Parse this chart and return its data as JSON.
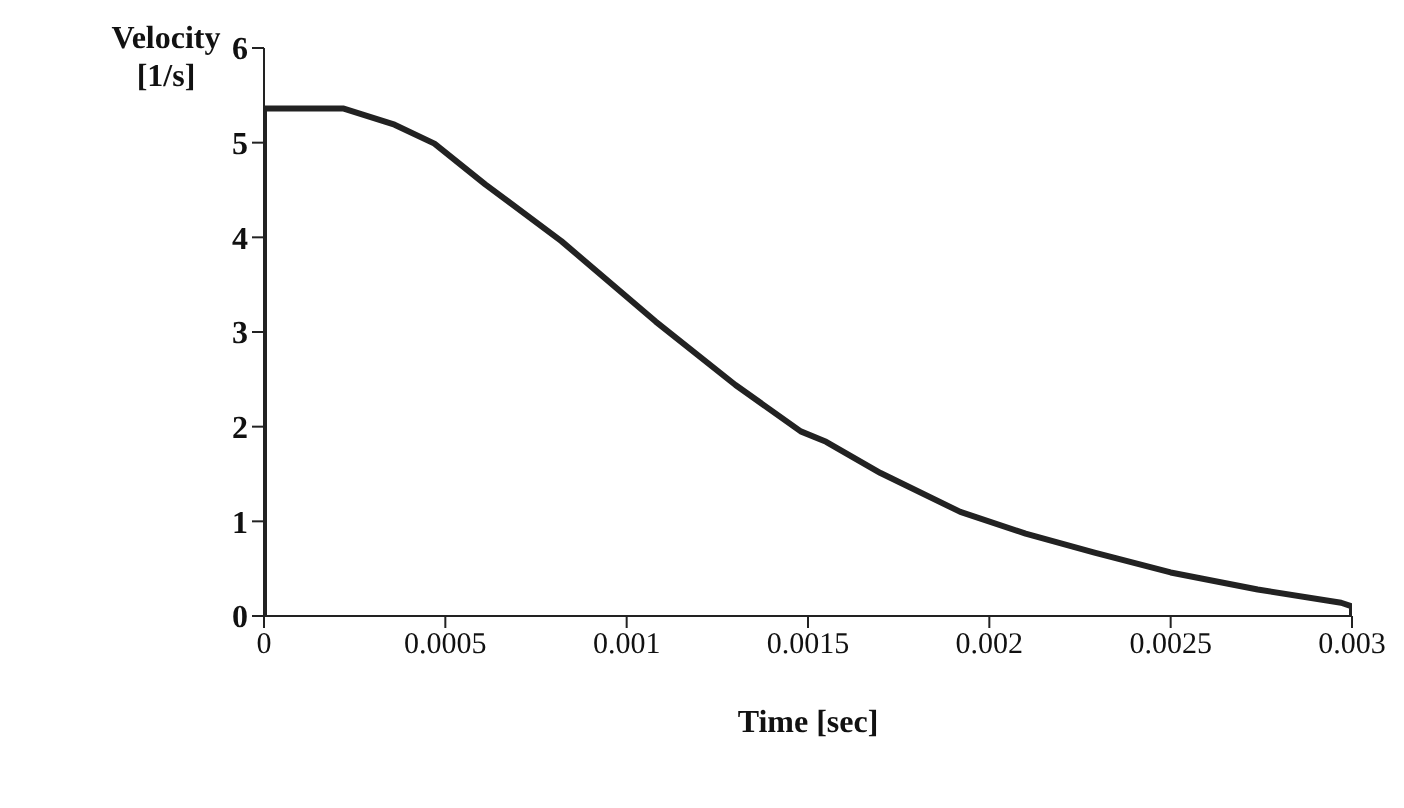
{
  "chart_data": {
    "type": "line",
    "xlabel": "Time [sec]",
    "ylabel": "Velocity [1/s]",
    "xlim": [
      0,
      0.003
    ],
    "xticks": [
      0,
      0.0005,
      0.001,
      0.0015,
      0.002,
      0.0025,
      0.003
    ],
    "ylim": [
      0,
      6
    ],
    "yticks": [
      0,
      1,
      2,
      3,
      4,
      5,
      6
    ],
    "series": [
      {
        "color": "#222222",
        "x": [
          0,
          0,
          0.00022,
          0.00036,
          0.00047,
          0.00061,
          0.00082,
          0.00108,
          0.0013,
          0.00148,
          0.00155,
          0.0017,
          0.00192,
          0.0021,
          0.00229,
          0.0025,
          0.00274,
          0.00297,
          0.003,
          0.003
        ],
        "values": [
          0,
          5.36,
          5.36,
          5.19,
          4.99,
          4.56,
          3.96,
          3.11,
          2.44,
          1.95,
          1.84,
          1.51,
          1.1,
          0.87,
          0.67,
          0.46,
          0.28,
          0.14,
          0.1,
          0
        ]
      }
    ],
    "grid": false,
    "legend": false,
    "marker": "none",
    "line_style": "solid"
  }
}
